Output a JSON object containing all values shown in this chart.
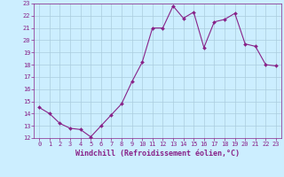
{
  "x": [
    0,
    1,
    2,
    3,
    4,
    5,
    6,
    7,
    8,
    9,
    10,
    11,
    12,
    13,
    14,
    15,
    16,
    17,
    18,
    19,
    20,
    21,
    22,
    23
  ],
  "y": [
    14.5,
    14.0,
    13.2,
    12.8,
    12.7,
    12.1,
    13.0,
    13.9,
    14.8,
    16.6,
    18.2,
    21.0,
    21.0,
    22.8,
    21.8,
    22.3,
    19.4,
    21.5,
    21.7,
    22.2,
    19.7,
    19.5,
    18.0,
    17.9
  ],
  "line_color": "#882288",
  "marker": "D",
  "marker_size": 2.0,
  "bg_color": "#cceeff",
  "grid_color": "#aaccdd",
  "xlabel": "Windchill (Refroidissement éolien,°C)",
  "ylim": [
    12,
    23
  ],
  "xlim": [
    -0.5,
    23.5
  ],
  "yticks": [
    12,
    13,
    14,
    15,
    16,
    17,
    18,
    19,
    20,
    21,
    22,
    23
  ],
  "xticks": [
    0,
    1,
    2,
    3,
    4,
    5,
    6,
    7,
    8,
    9,
    10,
    11,
    12,
    13,
    14,
    15,
    16,
    17,
    18,
    19,
    20,
    21,
    22,
    23
  ],
  "tick_color": "#882288",
  "tick_fontsize": 5.0,
  "xlabel_fontsize": 6.0,
  "linewidth": 0.8
}
